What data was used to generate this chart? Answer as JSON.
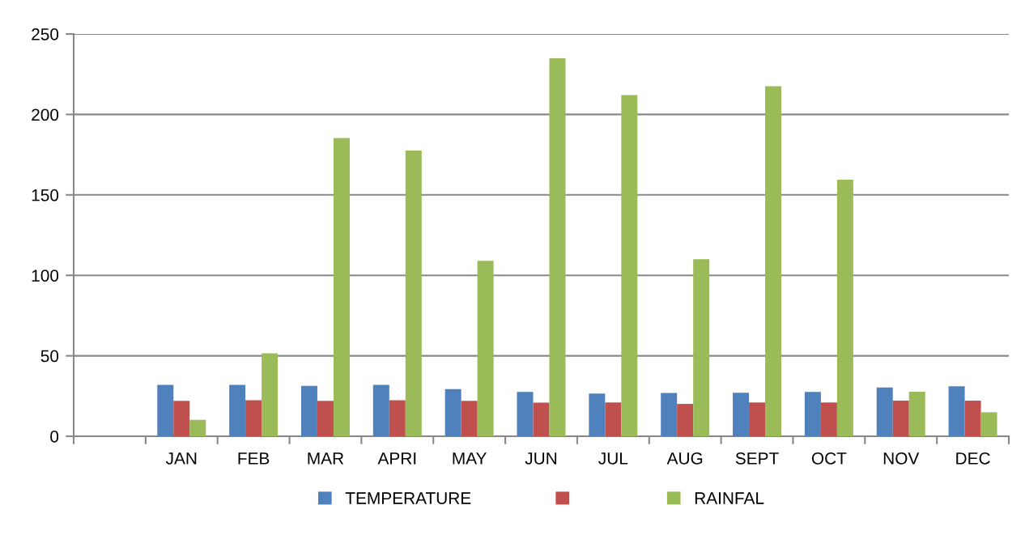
{
  "chart_data": {
    "type": "bar",
    "categories": [
      null,
      "JAN",
      "FEB",
      "MAR",
      "APRI",
      "MAY",
      "JUN",
      "JUL",
      "AUG",
      "SEPT",
      "OCT",
      "NOV",
      "DEC"
    ],
    "series": [
      {
        "name": "TEMPERATURE",
        "color": "#4f81bd",
        "values": [
          null,
          32,
          32,
          31.3,
          32,
          29.3,
          27.6,
          26.5,
          26.9,
          27.1,
          27.5,
          30.3,
          31.1
        ]
      },
      {
        "color": "#c0504d",
        "values": [
          null,
          22,
          22.4,
          22,
          22.4,
          22,
          20.9,
          21,
          20.1,
          21,
          21,
          22.1,
          22.1
        ]
      },
      {
        "name": "RAINFAL",
        "color": "#9bbb59",
        "values": [
          null,
          10.2,
          51.5,
          185.4,
          177.6,
          109,
          234.9,
          212,
          110,
          217.5,
          159.5,
          27.7,
          14.9
        ]
      }
    ],
    "ylim": [
      0,
      250
    ],
    "yticks": [
      0,
      50,
      100,
      150,
      200,
      250
    ],
    "grid": "y",
    "legend": "bottom"
  }
}
